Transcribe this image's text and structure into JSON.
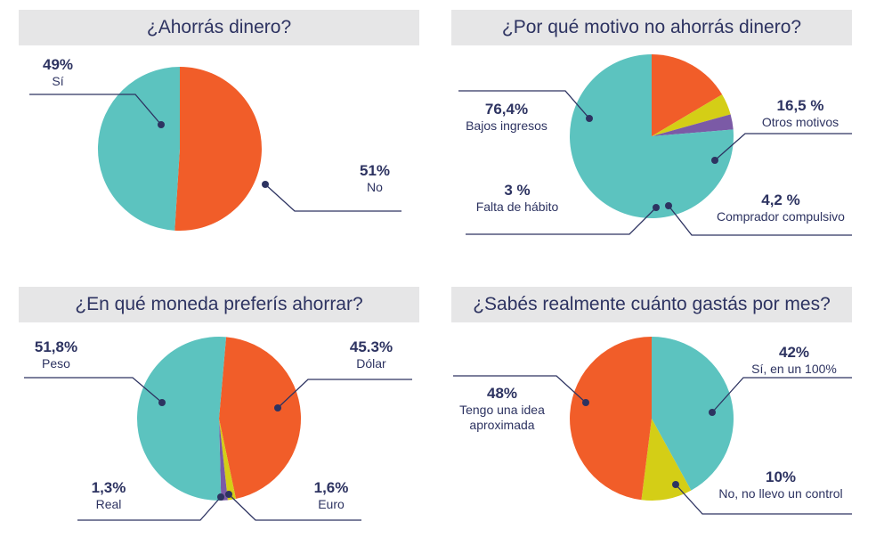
{
  "colors": {
    "teal": "#5cc3bf",
    "orange": "#f15d29",
    "yellow": "#d4ce16",
    "purple": "#7b5aa6",
    "title_bg": "#e6e6e7",
    "text": "#2d3361"
  },
  "chart_data": [
    {
      "type": "pie",
      "title": "¿Ahorrás dinero?",
      "slices": [
        {
          "label": "Sí",
          "value": 49,
          "display": "49%",
          "color": "#5cc3bf"
        },
        {
          "label": "No",
          "value": 51,
          "display": "51%",
          "color": "#f15d29"
        }
      ]
    },
    {
      "type": "pie",
      "title": "¿Por qué motivo no ahorrás dinero?",
      "slices": [
        {
          "label": "Bajos ingresos",
          "value": 76.4,
          "display": "76,4%",
          "color": "#5cc3bf"
        },
        {
          "label": "Otros motivos",
          "value": 16.5,
          "display": "16,5 %",
          "color": "#f15d29"
        },
        {
          "label": "Comprador compulsivo",
          "value": 4.2,
          "display": "4,2 %",
          "color": "#d4ce16"
        },
        {
          "label": "Falta de hábito",
          "value": 3,
          "display": "3 %",
          "color": "#7b5aa6"
        }
      ]
    },
    {
      "type": "pie",
      "title": "¿En qué moneda preferís ahorrar?",
      "slices": [
        {
          "label": "Dólar",
          "value": 45.3,
          "display": "45.3%",
          "color": "#f15d29"
        },
        {
          "label": "Euro",
          "value": 1.6,
          "display": "1,6%",
          "color": "#d4ce16"
        },
        {
          "label": "Real",
          "value": 1.3,
          "display": "1,3%",
          "color": "#7b5aa6"
        },
        {
          "label": "Peso",
          "value": 51.8,
          "display": "51,8%",
          "color": "#5cc3bf"
        }
      ]
    },
    {
      "type": "pie",
      "title": "¿Sabés realmente cuánto gastás por mes?",
      "slices": [
        {
          "label": "Sí, en un 100%",
          "value": 42,
          "display": "42%",
          "color": "#5cc3bf"
        },
        {
          "label": "No, no llevo un control",
          "value": 10,
          "display": "10%",
          "color": "#d4ce16"
        },
        {
          "label": "Tengo una idea aproximada",
          "value": 48,
          "display": "48%",
          "color": "#f15d29"
        }
      ]
    }
  ]
}
